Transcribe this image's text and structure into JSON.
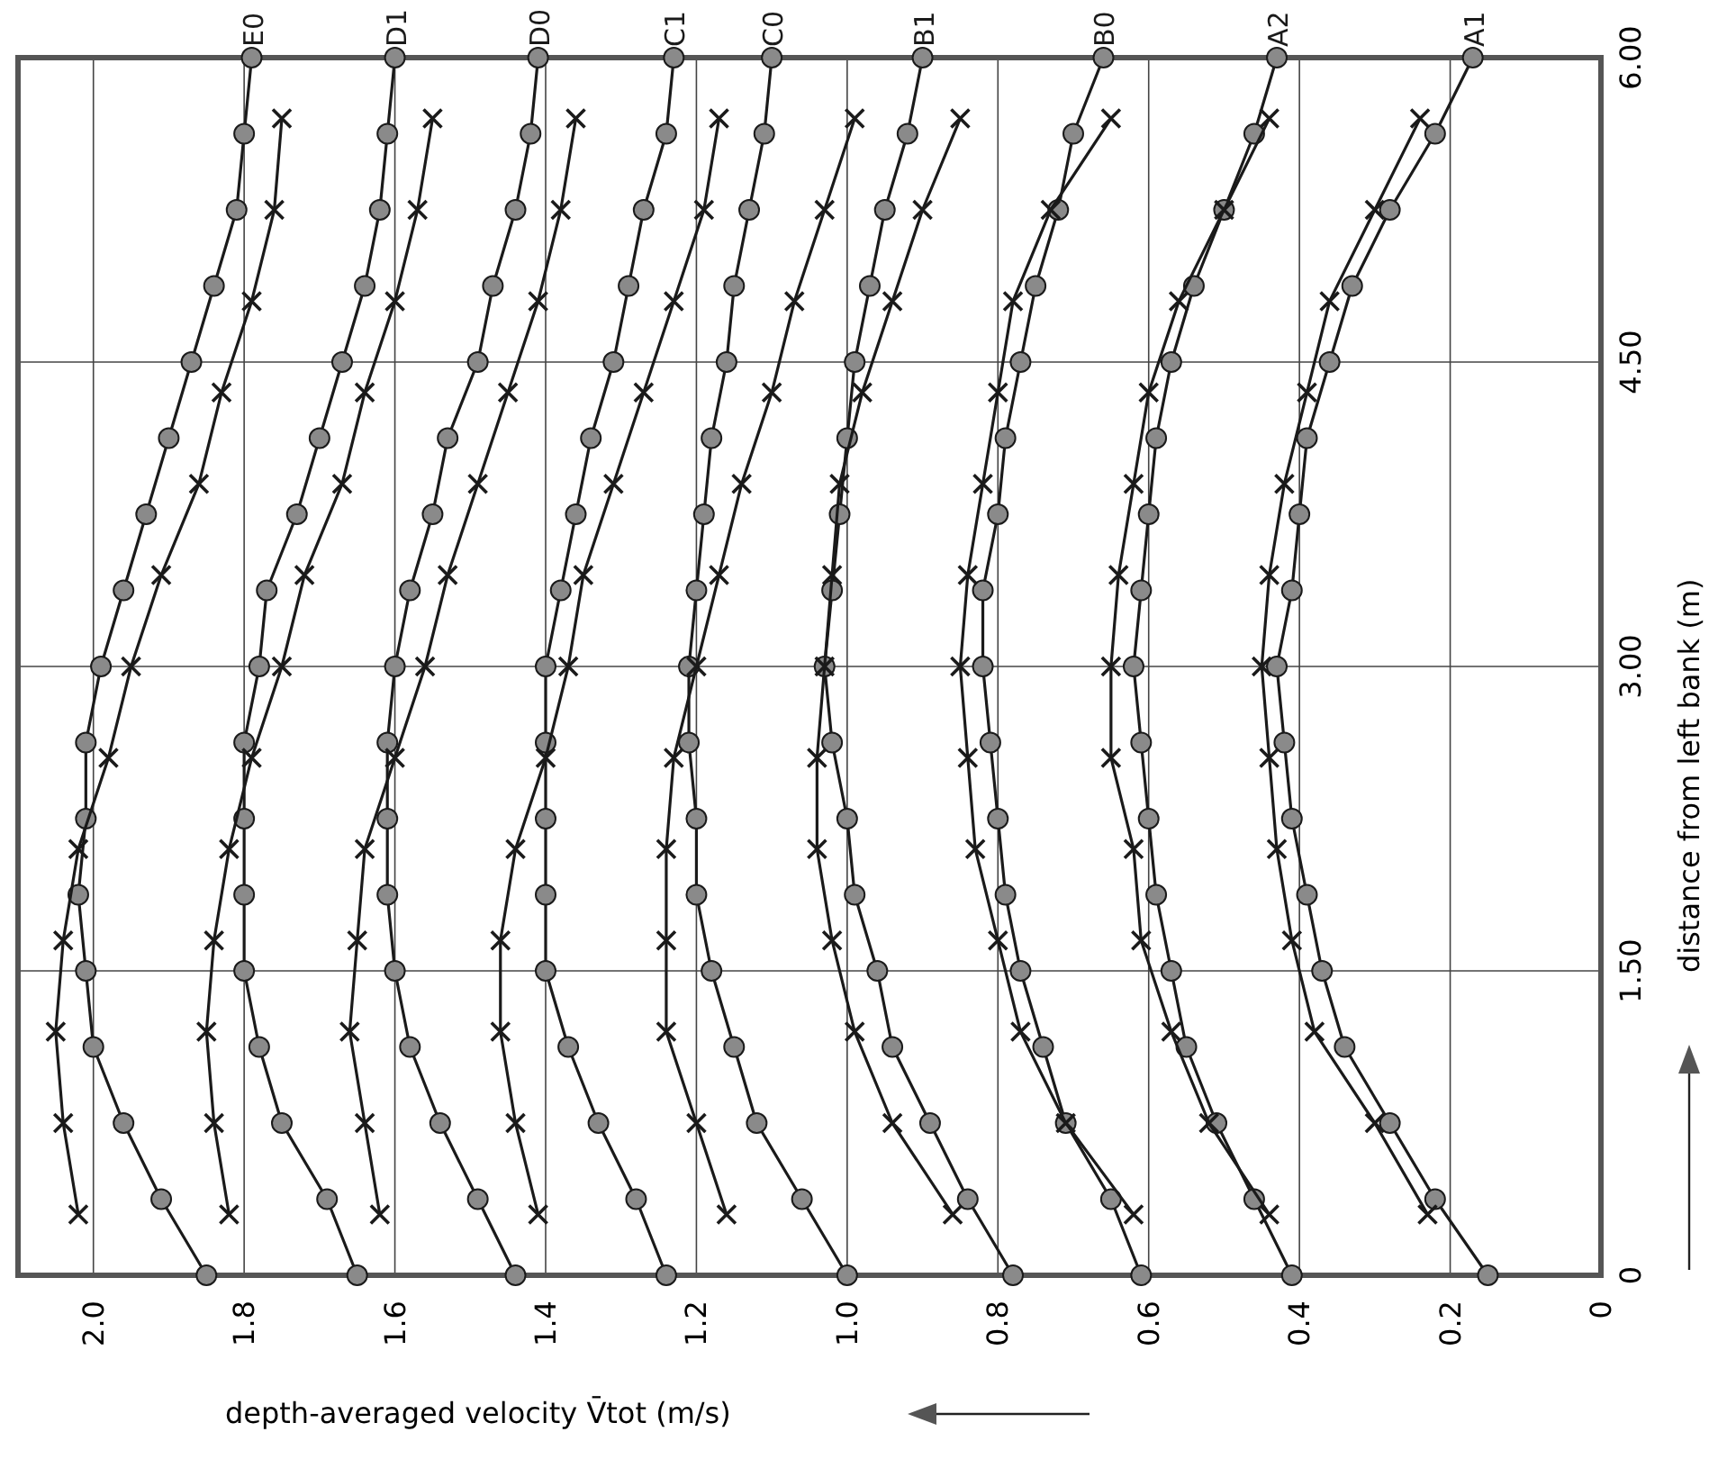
{
  "chart_data": {
    "type": "line",
    "xlabel": "depth-averaged velocity V̄tot (m/s)",
    "ylabel": "distance from left bank (m)",
    "xlim": [
      2.1,
      0
    ],
    "ylim": [
      0,
      6
    ],
    "xticks": [
      {
        "value": 2,
        "label": "2.0"
      },
      1.8,
      1.6,
      1.4,
      1.2,
      {
        "value": 1,
        "label": "1.0"
      },
      0.8,
      0.6,
      0.4,
      0.2,
      0
    ],
    "yticks": [
      0,
      {
        "value": 1.5,
        "label": "1.50"
      },
      {
        "value": 3,
        "label": "3.00"
      },
      {
        "value": 4.5,
        "label": "4.50"
      },
      {
        "value": 6,
        "label": "6.00"
      }
    ],
    "grid": true,
    "series": [
      {
        "name": "E0",
        "color": "#1a1a1a",
        "marker": "circle",
        "values": [
          0,
          0.375,
          0.75,
          1.125,
          1.5,
          1.875,
          2.25,
          2.625,
          3,
          3.375,
          3.75,
          4.125,
          4.5,
          4.875,
          5.25,
          5.625,
          6
        ],
        "x": [
          1.85,
          1.91,
          1.96,
          2.0,
          2.01,
          2.02,
          2.01,
          2.01,
          1.99,
          1.96,
          1.93,
          1.9,
          1.87,
          1.84,
          1.81,
          1.8,
          1.79
        ]
      },
      {
        "color": "#1a1a1a",
        "marker": "cross",
        "values": [
          0.3,
          0.75,
          1.2,
          1.65,
          2.1,
          2.55,
          3,
          3.45,
          3.9,
          4.35,
          4.8,
          5.25,
          5.7
        ],
        "x": [
          2.02,
          2.04,
          2.05,
          2.04,
          2.02,
          1.98,
          1.95,
          1.91,
          1.86,
          1.83,
          1.79,
          1.76,
          1.75
        ]
      },
      {
        "name": "D1",
        "color": "#1a1a1a",
        "marker": "circle",
        "values": [
          0,
          0.375,
          0.75,
          1.125,
          1.5,
          1.875,
          2.25,
          2.625,
          3,
          3.375,
          3.75,
          4.125,
          4.5,
          4.875,
          5.25,
          5.625,
          6
        ],
        "x": [
          1.65,
          1.69,
          1.75,
          1.78,
          1.8,
          1.8,
          1.8,
          1.8,
          1.78,
          1.77,
          1.73,
          1.7,
          1.67,
          1.64,
          1.62,
          1.61,
          1.6
        ]
      },
      {
        "color": "#1a1a1a",
        "marker": "cross",
        "values": [
          0.3,
          0.75,
          1.2,
          1.65,
          2.1,
          2.55,
          3,
          3.45,
          3.9,
          4.35,
          4.8,
          5.25,
          5.7
        ],
        "x": [
          1.82,
          1.84,
          1.85,
          1.84,
          1.82,
          1.79,
          1.75,
          1.72,
          1.67,
          1.64,
          1.6,
          1.57,
          1.55
        ]
      },
      {
        "name": "D0",
        "color": "#1a1a1a",
        "marker": "circle",
        "values": [
          0,
          0.375,
          0.75,
          1.125,
          1.5,
          1.875,
          2.25,
          2.625,
          3,
          3.375,
          3.75,
          4.125,
          4.5,
          4.875,
          5.25,
          5.625,
          6
        ],
        "x": [
          1.44,
          1.49,
          1.54,
          1.58,
          1.6,
          1.61,
          1.61,
          1.61,
          1.6,
          1.58,
          1.55,
          1.53,
          1.49,
          1.47,
          1.44,
          1.42,
          1.41
        ]
      },
      {
        "color": "#1a1a1a",
        "marker": "cross",
        "values": [
          0.3,
          0.75,
          1.2,
          1.65,
          2.1,
          2.55,
          3,
          3.45,
          3.9,
          4.35,
          4.8,
          5.25,
          5.7
        ],
        "x": [
          1.62,
          1.64,
          1.66,
          1.65,
          1.64,
          1.6,
          1.56,
          1.53,
          1.49,
          1.45,
          1.41,
          1.38,
          1.36
        ]
      },
      {
        "name": "C1",
        "color": "#1a1a1a",
        "marker": "circle",
        "values": [
          0,
          0.375,
          0.75,
          1.125,
          1.5,
          1.875,
          2.25,
          2.625,
          3,
          3.375,
          3.75,
          4.125,
          4.5,
          4.875,
          5.25,
          5.625,
          6
        ],
        "x": [
          1.24,
          1.28,
          1.33,
          1.37,
          1.4,
          1.4,
          1.4,
          1.4,
          1.4,
          1.38,
          1.36,
          1.34,
          1.31,
          1.29,
          1.27,
          1.24,
          1.23
        ]
      },
      {
        "color": "#1a1a1a",
        "marker": "cross",
        "values": [
          0.3,
          0.75,
          1.2,
          1.65,
          2.1,
          2.55,
          3,
          3.45,
          3.9,
          4.35,
          4.8,
          5.25,
          5.7
        ],
        "x": [
          1.41,
          1.44,
          1.46,
          1.46,
          1.44,
          1.4,
          1.37,
          1.35,
          1.31,
          1.27,
          1.23,
          1.19,
          1.17
        ]
      },
      {
        "name": "C0",
        "color": "#1a1a1a",
        "marker": "circle",
        "values": [
          0,
          0.375,
          0.75,
          1.125,
          1.5,
          1.875,
          2.25,
          2.625,
          3,
          3.375,
          3.75,
          4.125,
          4.5,
          4.875,
          5.25,
          5.625,
          6
        ],
        "x": [
          1.0,
          1.06,
          1.12,
          1.15,
          1.18,
          1.2,
          1.2,
          1.21,
          1.21,
          1.2,
          1.19,
          1.18,
          1.16,
          1.15,
          1.13,
          1.11,
          1.1
        ]
      },
      {
        "color": "#1a1a1a",
        "marker": "cross",
        "values": [
          0.3,
          0.75,
          1.2,
          1.65,
          2.1,
          2.55,
          3,
          3.45,
          3.9,
          4.35,
          4.8,
          5.25,
          5.7
        ],
        "x": [
          1.16,
          1.2,
          1.24,
          1.24,
          1.24,
          1.23,
          1.2,
          1.17,
          1.14,
          1.1,
          1.07,
          1.03,
          0.99
        ]
      },
      {
        "name": "B1",
        "color": "#1a1a1a",
        "marker": "circle",
        "values": [
          0,
          0.375,
          0.75,
          1.125,
          1.5,
          1.875,
          2.25,
          2.625,
          3,
          3.375,
          3.75,
          4.125,
          4.5,
          4.875,
          5.25,
          5.625,
          6
        ],
        "x": [
          0.78,
          0.84,
          0.89,
          0.94,
          0.96,
          0.99,
          1.0,
          1.02,
          1.03,
          1.02,
          1.01,
          1.0,
          0.99,
          0.97,
          0.95,
          0.92,
          0.9
        ]
      },
      {
        "color": "#1a1a1a",
        "marker": "cross",
        "values": [
          0.3,
          0.75,
          1.2,
          1.65,
          2.1,
          2.55,
          3,
          3.45,
          3.9,
          4.35,
          4.8,
          5.25,
          5.7
        ],
        "x": [
          0.86,
          0.94,
          0.99,
          1.02,
          1.04,
          1.04,
          1.03,
          1.02,
          1.01,
          0.98,
          0.94,
          0.9,
          0.85
        ]
      },
      {
        "name": "B0",
        "color": "#1a1a1a",
        "marker": "circle",
        "values": [
          0,
          0.375,
          0.75,
          1.125,
          1.5,
          1.875,
          2.25,
          2.625,
          3,
          3.375,
          3.75,
          4.125,
          4.5,
          4.875,
          5.25,
          5.625,
          6
        ],
        "x": [
          0.61,
          0.65,
          0.71,
          0.74,
          0.77,
          0.79,
          0.8,
          0.81,
          0.82,
          0.82,
          0.8,
          0.79,
          0.77,
          0.75,
          0.72,
          0.7,
          0.66
        ]
      },
      {
        "color": "#1a1a1a",
        "marker": "cross",
        "values": [
          0.3,
          0.75,
          1.2,
          1.65,
          2.1,
          2.55,
          3,
          3.45,
          3.9,
          4.35,
          4.8,
          5.25,
          5.7
        ],
        "x": [
          0.62,
          0.71,
          0.77,
          0.8,
          0.83,
          0.84,
          0.85,
          0.84,
          0.82,
          0.8,
          0.78,
          0.73,
          0.65
        ]
      },
      {
        "name": "A2",
        "color": "#1a1a1a",
        "marker": "circle",
        "values": [
          0,
          0.375,
          0.75,
          1.125,
          1.5,
          1.875,
          2.25,
          2.625,
          3,
          3.375,
          3.75,
          4.125,
          4.5,
          4.875,
          5.25,
          5.625,
          6
        ],
        "x": [
          0.41,
          0.46,
          0.51,
          0.55,
          0.57,
          0.59,
          0.6,
          0.61,
          0.62,
          0.61,
          0.6,
          0.59,
          0.57,
          0.54,
          0.5,
          0.46,
          0.43
        ]
      },
      {
        "color": "#1a1a1a",
        "marker": "cross",
        "values": [
          0.3,
          0.75,
          1.2,
          1.65,
          2.1,
          2.55,
          3,
          3.45,
          3.9,
          4.35,
          4.8,
          5.25,
          5.7
        ],
        "x": [
          0.44,
          0.52,
          0.57,
          0.61,
          0.62,
          0.65,
          0.65,
          0.64,
          0.62,
          0.6,
          0.56,
          0.5,
          0.44
        ]
      },
      {
        "name": "A1",
        "color": "#1a1a1a",
        "marker": "circle",
        "values": [
          0,
          0.375,
          0.75,
          1.125,
          1.5,
          1.875,
          2.25,
          2.625,
          3,
          3.375,
          3.75,
          4.125,
          4.5,
          4.875,
          5.25,
          5.625,
          6
        ],
        "x": [
          0.15,
          0.22,
          0.28,
          0.34,
          0.37,
          0.39,
          0.41,
          0.42,
          0.43,
          0.41,
          0.4,
          0.39,
          0.36,
          0.33,
          0.28,
          0.22,
          0.17
        ]
      },
      {
        "color": "#1a1a1a",
        "marker": "cross",
        "values": [
          0.3,
          0.75,
          1.2,
          1.65,
          2.1,
          2.55,
          3,
          3.45,
          3.9,
          4.35,
          4.8,
          5.25,
          5.7
        ],
        "x": [
          0.23,
          0.3,
          0.38,
          0.41,
          0.43,
          0.44,
          0.45,
          0.44,
          0.42,
          0.39,
          0.36,
          0.3,
          0.24
        ]
      }
    ]
  }
}
